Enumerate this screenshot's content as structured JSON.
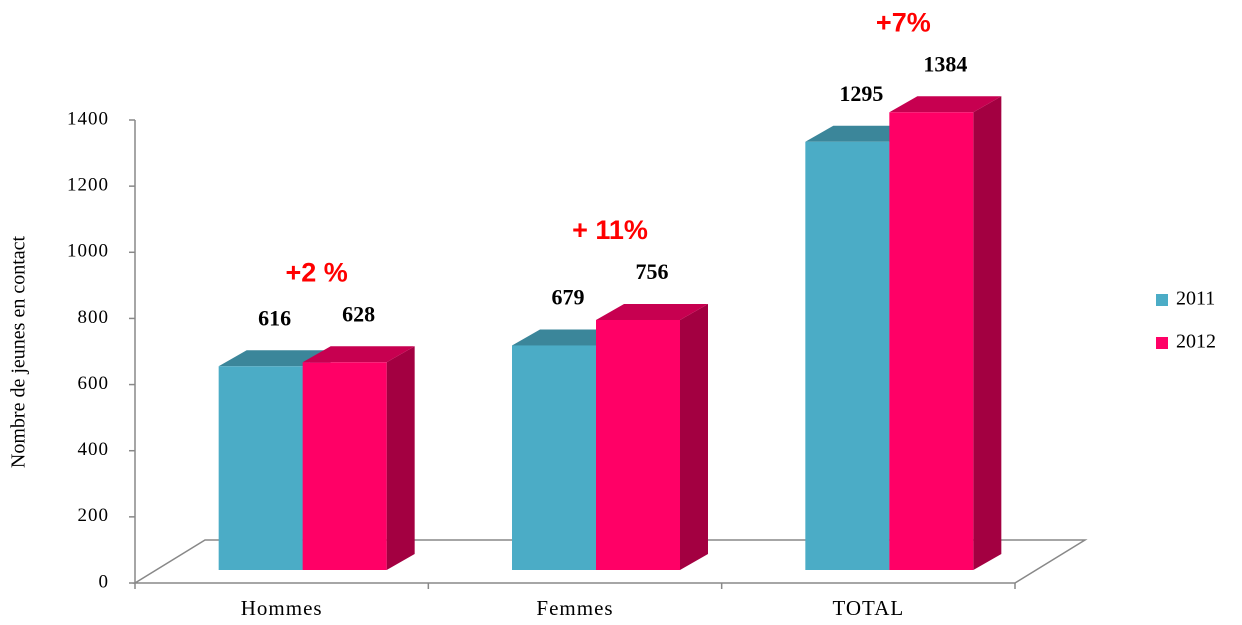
{
  "chart_data": {
    "type": "bar3d",
    "y_label": "Nombre de jeunes en contact",
    "categories": [
      "Hommes",
      "Femmes",
      "TOTAL"
    ],
    "series": [
      {
        "name": "2011",
        "color": "#4bacc6",
        "values": [
          616,
          679,
          1295
        ]
      },
      {
        "name": "2012",
        "color": "#ff0066",
        "values": [
          628,
          756,
          1384
        ]
      }
    ],
    "annotations": [
      "+2 %",
      "+ 11%",
      "+7%"
    ],
    "ylim": [
      0,
      1400
    ],
    "yticks": [
      0,
      200,
      400,
      600,
      800,
      1000,
      1200,
      1400
    ],
    "grid": false,
    "legend": "right"
  }
}
